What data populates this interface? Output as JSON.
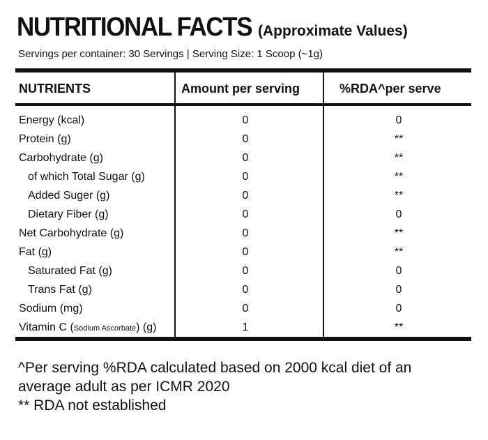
{
  "header": {
    "title": "NUTRITIONAL FACTS",
    "subtitle": "(Approximate Values)",
    "servings": "Servings per container: 30 Servings | Serving Size: 1 Scoop (~1g)"
  },
  "table": {
    "columns": [
      "NUTRIENTS",
      "Amount per serving",
      "%RDA^per serve"
    ],
    "rows": [
      {
        "name": "Energy (kcal)",
        "amount": "0",
        "rda": "0"
      },
      {
        "name": "Protein (g)",
        "amount": "0",
        "rda": "**"
      },
      {
        "name": "Carbohydrate (g)",
        "amount": "0",
        "rda": "**"
      },
      {
        "name": "of which Total Sugar (g)",
        "amount": "0",
        "rda": "**"
      },
      {
        "name": "Added Suger (g)",
        "amount": "0",
        "rda": "**"
      },
      {
        "name": "Dietary Fiber (g)",
        "amount": "0",
        "rda": "0"
      },
      {
        "name": "Net Carbohydrate (g)",
        "amount": "0",
        "rda": "**"
      },
      {
        "name": "Fat (g)",
        "amount": "0",
        "rda": "**"
      },
      {
        "name": "Saturated Fat (g)",
        "amount": "0",
        "rda": "0"
      },
      {
        "name": "Trans Fat (g)",
        "amount": "0",
        "rda": "0"
      },
      {
        "name": "Sodium (mg)",
        "amount": "0",
        "rda": "0"
      },
      {
        "name_pre": "Vitamin C (",
        "name_small": "Sodium Ascorbate",
        "name_post": ") (g)",
        "amount": "1",
        "rda": "**"
      }
    ]
  },
  "footer": {
    "line1": "^Per serving %RDA calculated based on 2000 kcal diet of an",
    "line2": "average adult as per ICMR 2020",
    "line3": "** RDA not established"
  }
}
